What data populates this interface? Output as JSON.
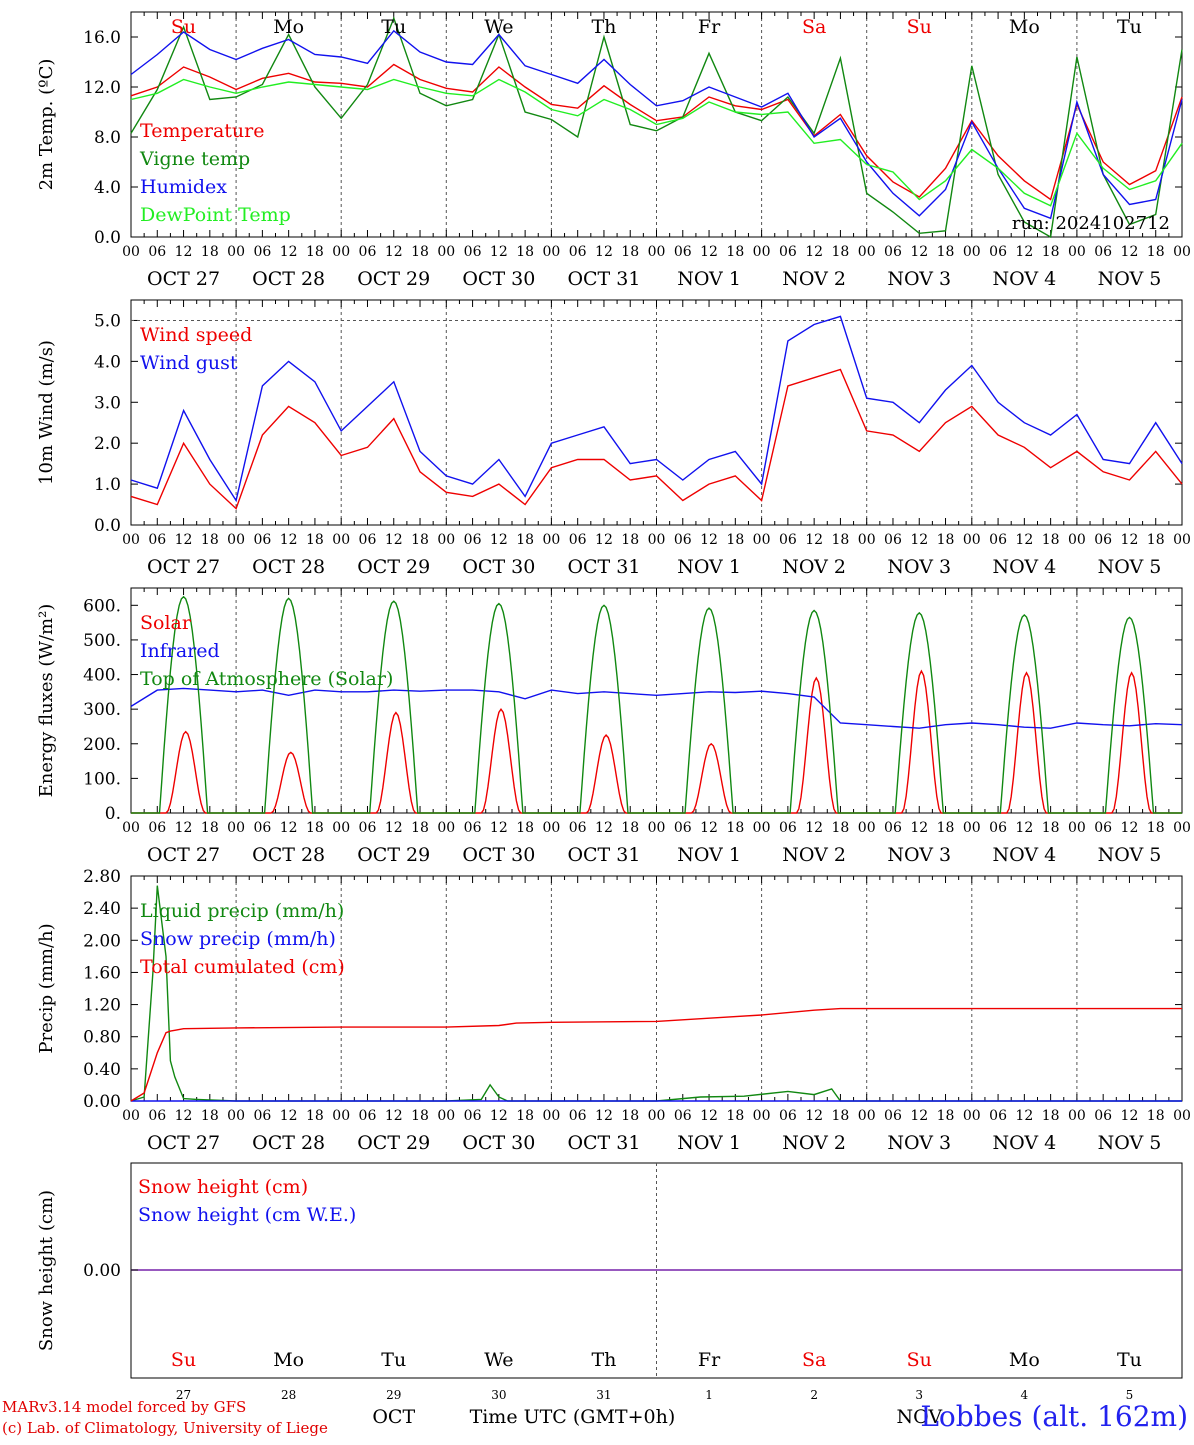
{
  "days": {
    "names": [
      "Su",
      "Mo",
      "Tu",
      "We",
      "Th",
      "Fr",
      "Sa",
      "Su",
      "Mo",
      "Tu"
    ],
    "weekend": [
      true,
      false,
      false,
      false,
      false,
      false,
      true,
      true,
      false,
      false
    ],
    "dates": [
      "OCT 27",
      "OCT 28",
      "OCT 29",
      "OCT 30",
      "OCT 31",
      "NOV 1",
      "NOV 2",
      "NOV 3",
      "NOV 4",
      "NOV 5"
    ],
    "numbers": [
      "27",
      "28",
      "29",
      "30",
      "31",
      "1",
      "2",
      "3",
      "4",
      "5"
    ],
    "hour_ticks": [
      "00",
      "06",
      "12",
      "18"
    ],
    "end_tick": "00",
    "month_labels": [
      "OCT",
      "NOV"
    ]
  },
  "colors": {
    "red": "#ee0000",
    "green": "#118811",
    "blue": "#1111ee",
    "lightgreen": "#22ee22",
    "purple": "#7722aa",
    "grid": "#555555"
  },
  "chart_data": [
    {
      "type": "line",
      "ylabel": "2m Temp. (ºC)",
      "ylim": [
        0,
        18
      ],
      "yticks": [
        "0.0",
        "4.0",
        "8.0",
        "12.0",
        "16.0"
      ],
      "annotation": "run: 2024102712",
      "x_unit": "hours since OCT 27 00 UTC",
      "x": [
        0,
        6,
        12,
        18,
        24,
        30,
        36,
        42,
        48,
        54,
        60,
        66,
        72,
        78,
        84,
        90,
        96,
        102,
        108,
        114,
        120,
        126,
        132,
        138,
        144,
        150,
        156,
        162,
        168,
        174,
        180,
        186,
        192,
        198,
        204,
        210,
        216,
        222,
        228,
        234,
        240
      ],
      "series": [
        {
          "name": "Temperature",
          "color": "red",
          "values": [
            11.3,
            12.0,
            13.6,
            12.8,
            11.8,
            12.7,
            13.1,
            12.4,
            12.3,
            12.0,
            13.8,
            12.6,
            11.9,
            11.6,
            13.6,
            12.0,
            10.6,
            10.3,
            12.1,
            10.6,
            9.3,
            9.6,
            11.2,
            10.5,
            10.2,
            11.0,
            8.1,
            9.8,
            6.5,
            4.4,
            3.2,
            5.5,
            9.3,
            6.5,
            4.5,
            3.0,
            10.6,
            6.0,
            4.2,
            5.3,
            11.2
          ]
        },
        {
          "name": "Vigne temp",
          "color": "green",
          "values": [
            8.3,
            11.8,
            16.8,
            11.0,
            11.2,
            12.2,
            16.2,
            12.0,
            9.5,
            12.2,
            17.5,
            11.5,
            10.5,
            11.0,
            16.2,
            10.0,
            9.4,
            8.0,
            16.0,
            9.0,
            8.5,
            9.6,
            14.7,
            10.0,
            9.3,
            11.2,
            8.3,
            14.3,
            3.5,
            2.0,
            0.3,
            0.5,
            13.7,
            5.0,
            1.2,
            0.0,
            14.4,
            5.0,
            1.0,
            1.8,
            15.0
          ]
        },
        {
          "name": "Humidex",
          "color": "blue",
          "values": [
            13.0,
            14.6,
            16.4,
            15.0,
            14.2,
            15.1,
            15.8,
            14.6,
            14.4,
            13.9,
            16.5,
            14.8,
            14.0,
            13.8,
            16.2,
            13.7,
            13.0,
            12.3,
            14.2,
            12.2,
            10.5,
            10.9,
            12.0,
            11.2,
            10.4,
            11.5,
            8.0,
            9.5,
            6.0,
            3.5,
            1.7,
            3.8,
            9.2,
            5.5,
            2.3,
            1.5,
            10.8,
            5.0,
            2.6,
            3.0,
            11.0
          ]
        },
        {
          "name": "DewPoint Temp",
          "color": "lightgreen",
          "values": [
            11.0,
            11.5,
            12.6,
            12.0,
            11.5,
            12.0,
            12.4,
            12.2,
            12.0,
            11.8,
            12.6,
            12.0,
            11.5,
            11.3,
            12.6,
            11.6,
            10.2,
            9.7,
            11.0,
            10.2,
            9.0,
            9.5,
            10.8,
            10.0,
            9.8,
            10.0,
            7.5,
            7.8,
            5.8,
            5.2,
            3.0,
            4.5,
            7.0,
            5.5,
            3.5,
            2.5,
            8.3,
            5.5,
            3.8,
            4.5,
            7.5
          ]
        }
      ]
    },
    {
      "type": "line",
      "ylabel": "10m Wind (m/s)",
      "ylim": [
        0,
        5.5
      ],
      "yticks": [
        "0.0",
        "1.0",
        "2.0",
        "3.0",
        "4.0",
        "5.0"
      ],
      "x_unit": "hours since OCT 27 00 UTC",
      "x": [
        0,
        6,
        12,
        18,
        24,
        30,
        36,
        42,
        48,
        54,
        60,
        66,
        72,
        78,
        84,
        90,
        96,
        102,
        108,
        114,
        120,
        126,
        132,
        138,
        144,
        150,
        156,
        162,
        168,
        174,
        180,
        186,
        192,
        198,
        204,
        210,
        216,
        222,
        228,
        234,
        240
      ],
      "series": [
        {
          "name": "Wind speed",
          "color": "red",
          "values": [
            0.7,
            0.5,
            2.0,
            1.0,
            0.4,
            2.2,
            2.9,
            2.5,
            1.7,
            1.9,
            2.6,
            1.3,
            0.8,
            0.7,
            1.0,
            0.5,
            1.4,
            1.6,
            1.6,
            1.1,
            1.2,
            0.6,
            1.0,
            1.2,
            0.6,
            3.4,
            3.6,
            3.8,
            2.3,
            2.2,
            1.8,
            2.5,
            2.9,
            2.2,
            1.9,
            1.4,
            1.8,
            1.3,
            1.1,
            1.8,
            1.0
          ]
        },
        {
          "name": "Wind gust",
          "color": "blue",
          "values": [
            1.1,
            0.9,
            2.8,
            1.6,
            0.6,
            3.4,
            4.0,
            3.5,
            2.3,
            2.9,
            3.5,
            1.8,
            1.2,
            1.0,
            1.6,
            0.7,
            2.0,
            2.2,
            2.4,
            1.5,
            1.6,
            1.1,
            1.6,
            1.8,
            1.0,
            4.5,
            4.9,
            5.1,
            3.1,
            3.0,
            2.5,
            3.3,
            3.9,
            3.0,
            2.5,
            2.2,
            2.7,
            1.6,
            1.5,
            2.5,
            1.5
          ]
        }
      ]
    },
    {
      "type": "line",
      "ylabel": "Energy fluxes (W/m²)",
      "ylim": [
        0,
        650
      ],
      "yticks": [
        "0.",
        "100.",
        "200.",
        "300.",
        "400.",
        "500.",
        "600."
      ],
      "x_unit": "hours since OCT 27 00 UTC",
      "series": [
        {
          "name": "Solar",
          "color": "red",
          "daily_peak_hour": 12.5,
          "daily_peaks": [
            235,
            175,
            290,
            300,
            225,
            200,
            390,
            410,
            405,
            405
          ]
        },
        {
          "name": "Infrared",
          "color": "blue",
          "x": [
            0,
            6,
            12,
            18,
            24,
            30,
            36,
            42,
            48,
            54,
            60,
            66,
            72,
            78,
            84,
            90,
            96,
            102,
            108,
            114,
            120,
            126,
            132,
            138,
            144,
            150,
            156,
            162,
            168,
            174,
            180,
            186,
            192,
            198,
            204,
            210,
            216,
            222,
            228,
            234,
            240
          ],
          "values": [
            308,
            355,
            360,
            355,
            350,
            355,
            340,
            355,
            350,
            350,
            355,
            352,
            355,
            355,
            350,
            330,
            355,
            345,
            350,
            345,
            340,
            345,
            350,
            348,
            352,
            345,
            335,
            260,
            255,
            250,
            245,
            255,
            260,
            255,
            248,
            245,
            260,
            255,
            252,
            258,
            255
          ]
        },
        {
          "name": "Top of Atmosphere (Solar)",
          "color": "green",
          "daily_peak_hour": 12.0,
          "daily_peaks": [
            625,
            620,
            612,
            605,
            600,
            592,
            585,
            578,
            572,
            565
          ]
        }
      ]
    },
    {
      "type": "line",
      "ylabel": "Precip (mm/h)",
      "ylim": [
        0,
        2.8
      ],
      "yticks": [
        "0.00",
        "0.40",
        "0.80",
        "1.20",
        "1.60",
        "2.00",
        "2.40",
        "2.80"
      ],
      "x_unit": "hours since OCT 27 00 UTC",
      "series": [
        {
          "name": "Liquid precip (mm/h)",
          "color": "green",
          "x": [
            0,
            3,
            5,
            6,
            8,
            9,
            10,
            12,
            15,
            24,
            48,
            72,
            80,
            82,
            84,
            86,
            96,
            120,
            130,
            140,
            150,
            156,
            160,
            162,
            240
          ],
          "values": [
            0,
            0.05,
            1.6,
            2.68,
            1.8,
            0.5,
            0.3,
            0.03,
            0.02,
            0,
            0,
            0,
            0.02,
            0.2,
            0.05,
            0,
            0,
            0,
            0.05,
            0.06,
            0.12,
            0.08,
            0.15,
            0,
            0
          ]
        },
        {
          "name": "Snow precip (mm/h)",
          "color": "blue",
          "x": [
            0,
            240
          ],
          "values": [
            0,
            0
          ]
        },
        {
          "name": "Total cumulated (cm)",
          "color": "red",
          "x": [
            0,
            3,
            6,
            8,
            9,
            10,
            12,
            24,
            48,
            72,
            84,
            88,
            96,
            120,
            132,
            144,
            156,
            162,
            168,
            240
          ],
          "values": [
            0,
            0.1,
            0.6,
            0.85,
            0.87,
            0.88,
            0.9,
            0.91,
            0.92,
            0.92,
            0.94,
            0.97,
            0.98,
            0.99,
            1.03,
            1.07,
            1.13,
            1.15,
            1.15,
            1.15
          ]
        }
      ]
    },
    {
      "type": "line",
      "ylabel": "Snow height (cm)",
      "yticks": [
        "0.00"
      ],
      "series": [
        {
          "name": "Snow height (cm)",
          "color": "red",
          "x": [
            0,
            240
          ],
          "values": [
            0,
            0
          ]
        },
        {
          "name": "Snow height (cm W.E.)",
          "color": "blue",
          "x": [
            0,
            240
          ],
          "values": [
            0,
            0
          ]
        }
      ]
    }
  ],
  "footer": {
    "xlabel": "Time UTC (GMT+0h)",
    "credit_line1": "MARv3.14 model forced by GFS",
    "credit_line2": "(c) Lab. of Climatology, University of Liege",
    "location": "Lobbes (alt. 162m)"
  }
}
